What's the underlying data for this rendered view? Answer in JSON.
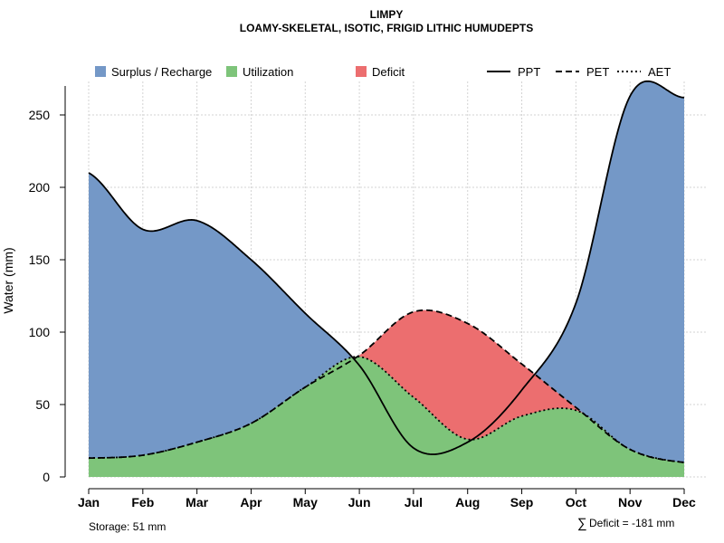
{
  "chart_data": {
    "type": "area",
    "title": "LIMPY",
    "subtitle": "LOAMY-SKELETAL, ISOTIC, FRIGID LITHIC HUMUDEPTS",
    "xlabel": "",
    "ylabel": "Water (mm)",
    "categories": [
      "Jan",
      "Feb",
      "Mar",
      "Apr",
      "May",
      "Jun",
      "Jul",
      "Aug",
      "Sep",
      "Oct",
      "Nov",
      "Dec"
    ],
    "ylim": [
      0,
      270
    ],
    "yticks": [
      0,
      50,
      100,
      150,
      200,
      250
    ],
    "series": [
      {
        "name": "PPT",
        "line": "solid",
        "values": [
          210,
          171,
          177,
          150,
          113,
          77,
          20,
          24,
          60,
          120,
          263,
          262
        ]
      },
      {
        "name": "PET",
        "line": "dashed",
        "values": [
          13,
          15,
          24,
          37,
          62,
          84,
          114,
          106,
          78,
          48,
          19,
          10
        ]
      },
      {
        "name": "AET",
        "line": "dotted",
        "values": [
          13,
          15,
          24,
          37,
          62,
          83,
          55,
          26,
          42,
          46,
          19,
          10
        ]
      }
    ],
    "legend": [
      {
        "label": "Surplus / Recharge",
        "kind": "fill",
        "color": "#7498c7"
      },
      {
        "label": "Utilization",
        "kind": "fill",
        "color": "#7ec47a"
      },
      {
        "label": "Deficit",
        "kind": "fill",
        "color": "#ec6e6f"
      },
      {
        "label": "PPT",
        "kind": "line",
        "dash": "solid"
      },
      {
        "label": "PET",
        "kind": "line",
        "dash": "dashed"
      },
      {
        "label": "AET",
        "kind": "line",
        "dash": "dotted"
      }
    ],
    "colors": {
      "surplus": "#7498c7",
      "utilization": "#7ec47a",
      "deficit": "#ec6e6f"
    },
    "grid": true,
    "legend_position": "top"
  },
  "footer": {
    "storage": "Storage: 51 mm",
    "deficit_symbol": "∑",
    "deficit": "Deficit = -181 mm"
  }
}
